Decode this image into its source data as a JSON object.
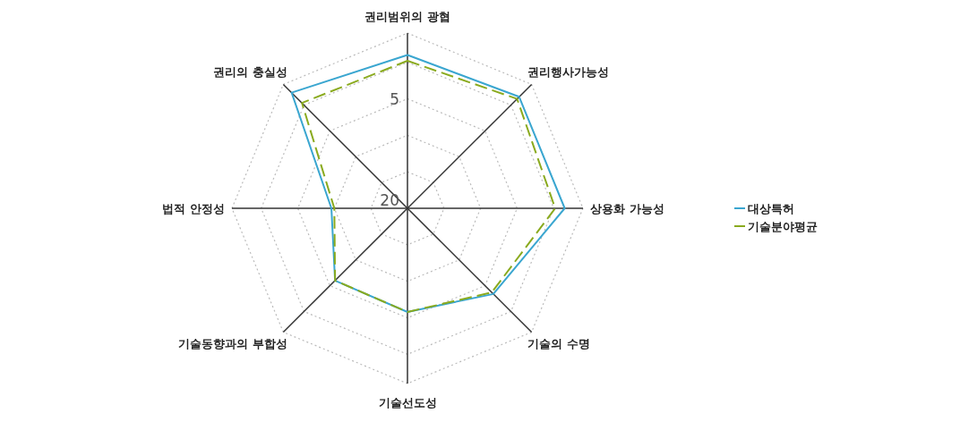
{
  "chart_data": {
    "type": "radar",
    "categories": [
      "권리범위의 광협",
      "권리행사가능성",
      "상용화 가능성",
      "기술의 수명",
      "기술선도성",
      "기술동향과의 부합성",
      "법적 안정성",
      "권리의 충실성"
    ],
    "series": [
      {
        "name": "대상특허",
        "color": "#3aa6d0",
        "line_style": "solid",
        "values": [
          -1.0,
          -1.6,
          -1.5,
          3.4,
          5.8,
          6.0,
          9.6,
          -2.4
        ]
      },
      {
        "name": "기술분야평균",
        "color": "#8aaa1e",
        "line_style": "dashed",
        "values": [
          -0.2,
          -1.2,
          -0.2,
          3.7,
          5.8,
          6.0,
          10.0,
          -0.4
        ]
      }
    ],
    "ylim": [
      20,
      -4
    ],
    "yticks": [
      20,
      5
    ],
    "grid": true,
    "legend": "right"
  }
}
